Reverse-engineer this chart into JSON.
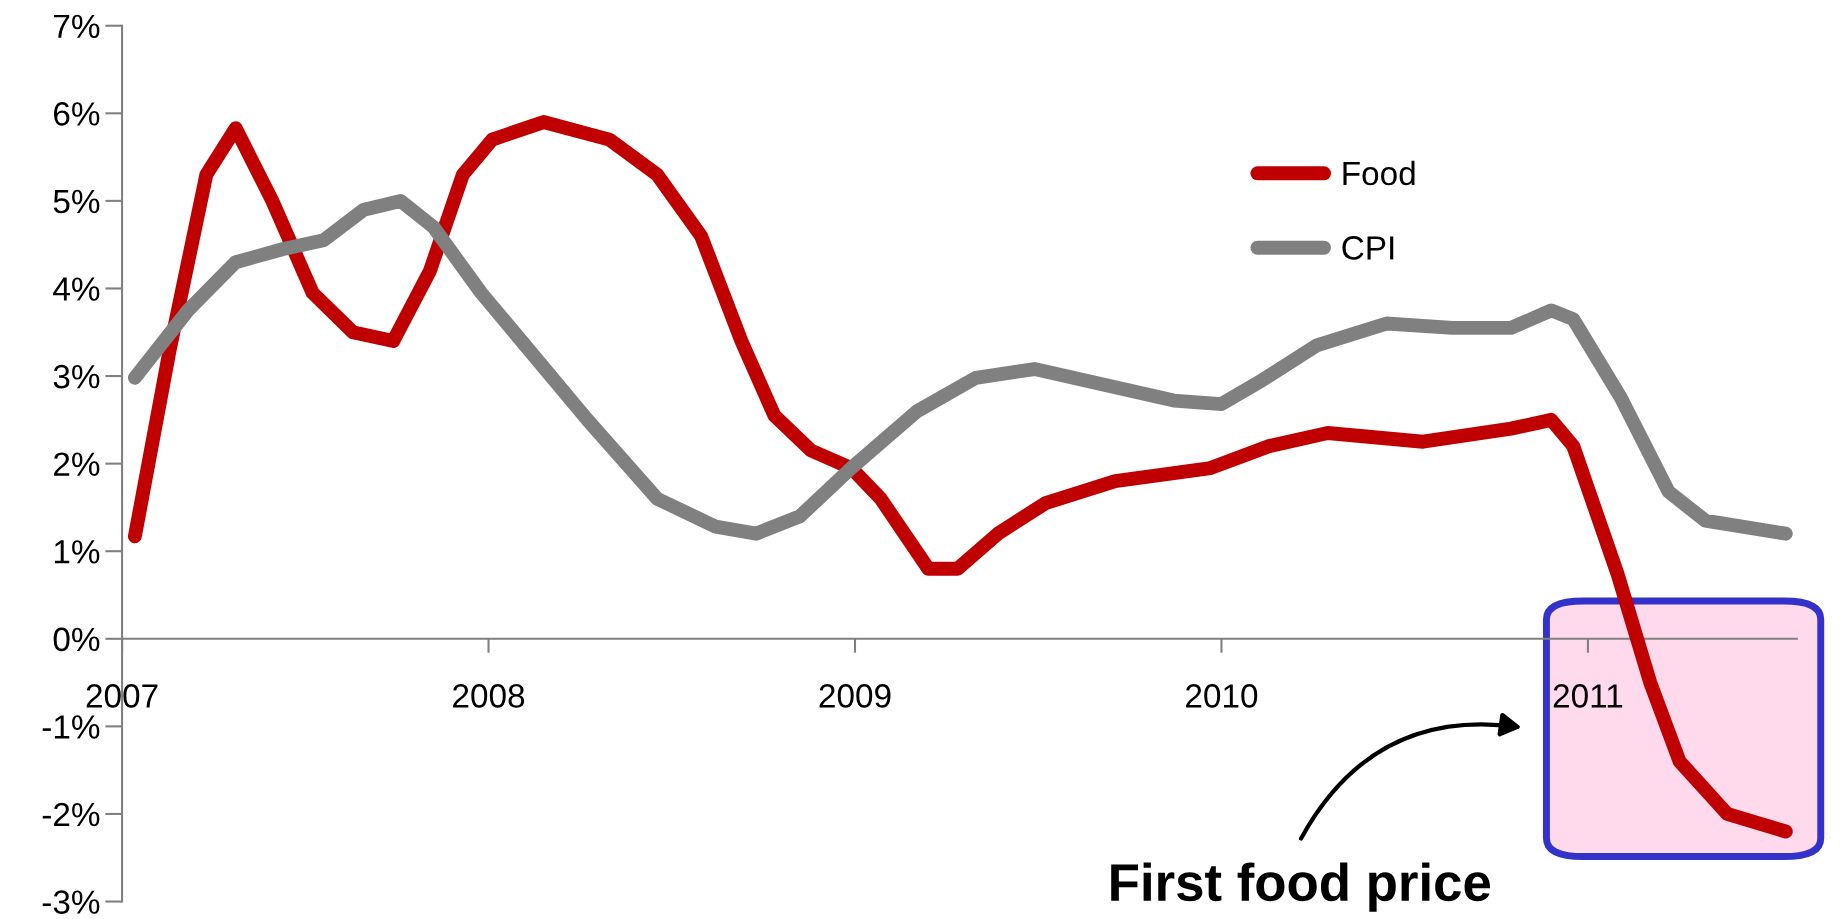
{
  "chart_data": {
    "type": "line",
    "x": [
      2007.035,
      2007.13,
      2007.23,
      2007.31,
      2007.41,
      2007.52,
      2007.63,
      2007.74,
      2007.84,
      2007.93,
      2008.01,
      2008.15,
      2008.33,
      2008.46,
      2008.58,
      2008.69,
      2008.78,
      2008.88,
      2008.99,
      2009.07,
      2009.2,
      2009.28,
      2009.39,
      2009.52,
      2009.71,
      2009.97,
      2010.13,
      2010.29,
      2010.55,
      2010.79,
      2010.9,
      2010.96,
      2011.08,
      2011.17,
      2011.25,
      2011.38,
      2011.54
    ],
    "series": [
      {
        "name": "Food",
        "color": "#c00000",
        "values": [
          1.17,
          3.3,
          5.3,
          5.83,
          5.0,
          3.95,
          3.5,
          3.4,
          4.2,
          5.3,
          5.7,
          5.9,
          5.7,
          5.3,
          4.6,
          3.4,
          2.55,
          2.15,
          1.95,
          1.6,
          0.8,
          0.8,
          1.2,
          1.55,
          1.8,
          1.95,
          2.2,
          2.35,
          2.25,
          2.4,
          2.5,
          2.2,
          0.75,
          -0.5,
          -1.4,
          -2.0,
          -2.2
        ]
      },
      {
        "name": "CPI",
        "color": "#808080",
        "x": [
          2007.035,
          2007.18,
          2007.31,
          2007.44,
          2007.55,
          2007.66,
          2007.76,
          2007.85,
          2007.98,
          2008.11,
          2008.27,
          2008.46,
          2008.62,
          2008.73,
          2008.85,
          2008.99,
          2009.17,
          2009.33,
          2009.49,
          2009.68,
          2009.87,
          2010.0,
          2010.11,
          2010.26,
          2010.45,
          2010.63,
          2010.79,
          2010.9,
          2010.96,
          2011.09,
          2011.22,
          2011.32,
          2011.54
        ],
        "values": [
          2.98,
          3.75,
          4.3,
          4.45,
          4.55,
          4.9,
          5.0,
          4.7,
          3.95,
          3.3,
          2.5,
          1.6,
          1.28,
          1.2,
          1.4,
          1.95,
          2.6,
          2.98,
          3.08,
          2.9,
          2.72,
          2.68,
          2.95,
          3.35,
          3.6,
          3.55,
          3.55,
          3.75,
          3.65,
          2.75,
          1.68,
          1.35,
          1.2
        ]
      }
    ],
    "xlim": [
      2007,
      2011.57
    ],
    "xticks": [
      2007,
      2008,
      2009,
      2010,
      2011
    ],
    "ylim": [
      -3,
      7
    ],
    "yticks": [
      {
        "value": -3,
        "label": "-3%"
      },
      {
        "value": -2,
        "label": "-2%"
      },
      {
        "value": -1,
        "label": "-1%"
      },
      {
        "value": 0,
        "label": "0%"
      },
      {
        "value": 1,
        "label": "1%"
      },
      {
        "value": 2,
        "label": "2%"
      },
      {
        "value": 3,
        "label": "3%"
      },
      {
        "value": 4,
        "label": "4%"
      },
      {
        "value": 5,
        "label": "5%"
      },
      {
        "value": 6,
        "label": "6%"
      },
      {
        "value": 7,
        "label": "7%"
      }
    ],
    "grid": false,
    "legend": "top right",
    "line_style": "solid",
    "annotations": [
      "First food price"
    ]
  }
}
